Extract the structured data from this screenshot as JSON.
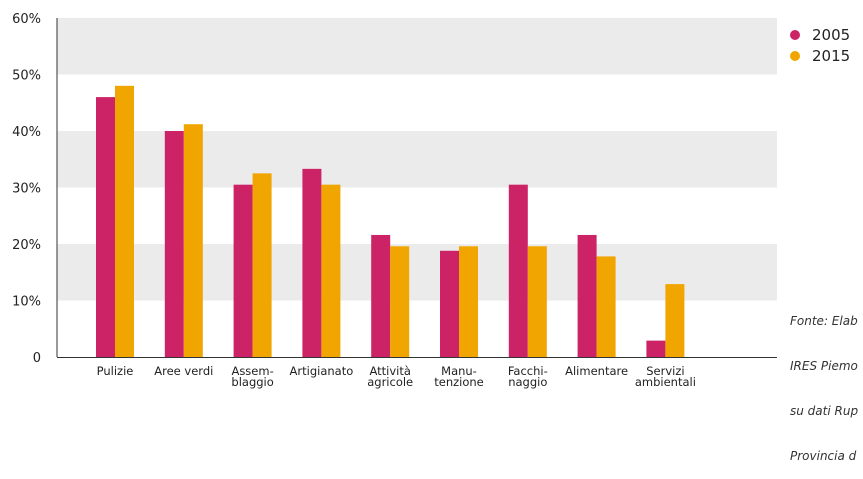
{
  "chart_data": {
    "type": "bar",
    "categories": [
      [
        "Pulizie"
      ],
      [
        "Aree verdi"
      ],
      [
        "Assem-",
        "blaggio"
      ],
      [
        "Artigianato"
      ],
      [
        "Attività",
        "agricole"
      ],
      [
        "Manu-",
        "tenzione"
      ],
      [
        "Facchi-",
        "naggio"
      ],
      [
        "Alimentare"
      ],
      [
        "Servizi",
        "ambientali"
      ]
    ],
    "series": [
      {
        "name": "2005",
        "color": "#cc2366",
        "values": [
          46,
          40,
          30.5,
          33.3,
          21.6,
          18.8,
          30.5,
          21.6,
          2.9
        ]
      },
      {
        "name": "2015",
        "color": "#f0a500",
        "values": [
          48,
          41.2,
          32.5,
          30.5,
          19.6,
          19.6,
          19.6,
          17.8,
          12.9
        ]
      }
    ],
    "ylim": [
      0,
      60
    ],
    "yticks": [
      "0",
      "10%",
      "20%",
      "30%",
      "40%",
      "50%",
      "60%"
    ],
    "grid": "alternating horizontal bands",
    "legend_position": "right",
    "source_note": [
      "Fonte: Elab",
      "IRES Piemo",
      "su dati Rup",
      "Provincia d"
    ]
  }
}
